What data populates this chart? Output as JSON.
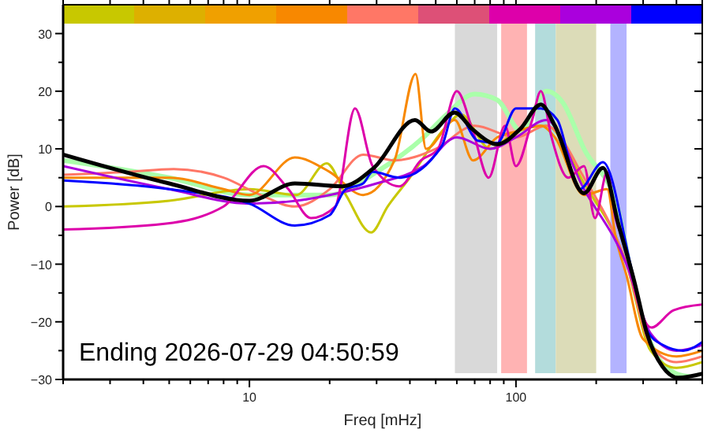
{
  "chart_data": {
    "type": "line",
    "xlabel": "Freq [mHz]",
    "ylabel": "Power [dB]",
    "log": "x",
    "xlim": [
      2,
      500
    ],
    "ylim": [
      -30,
      35
    ],
    "xticks": [
      {
        "value": 2,
        "label": null
      },
      {
        "value": 3,
        "label": null
      },
      {
        "value": 4,
        "label": null
      },
      {
        "value": 5,
        "label": null
      },
      {
        "value": 6,
        "label": null
      },
      {
        "value": 7,
        "label": null
      },
      {
        "value": 8,
        "label": null
      },
      {
        "value": 9,
        "label": null
      },
      10,
      {
        "value": 20,
        "label": null
      },
      {
        "value": 30,
        "label": null
      },
      {
        "value": 40,
        "label": null
      },
      {
        "value": 50,
        "label": null
      },
      {
        "value": 60,
        "label": null
      },
      {
        "value": 70,
        "label": null
      },
      {
        "value": 80,
        "label": null
      },
      {
        "value": 90,
        "label": null
      },
      100,
      {
        "value": 200,
        "label": null
      },
      {
        "value": 300,
        "label": null
      },
      {
        "value": 400,
        "label": null
      },
      {
        "value": 500,
        "label": null
      }
    ],
    "yticks": [
      -30,
      {
        "value": -25,
        "label": null
      },
      -20,
      {
        "value": -15,
        "label": null
      },
      -10,
      {
        "value": -5,
        "label": null
      },
      0,
      {
        "value": 5,
        "label": null
      },
      10,
      {
        "value": 15,
        "label": null
      },
      20,
      {
        "value": 25,
        "label": null
      },
      30
    ],
    "grid": false,
    "line_style": "solid",
    "marker": "none",
    "annotations": [
      "Ending 2026-07-29 04:50:59"
    ],
    "bands": [
      {
        "axis": "x",
        "from": 59,
        "to": 85,
        "color": "#d9d9d9"
      },
      {
        "axis": "x",
        "from": 88,
        "to": 110,
        "color": "#ffb3b3"
      },
      {
        "axis": "x",
        "from": 118,
        "to": 141,
        "color": "#b3dcdc"
      },
      {
        "axis": "x",
        "from": 141,
        "to": 200,
        "color": "#dcdcb8"
      },
      {
        "axis": "x",
        "from": 226,
        "to": 260,
        "color": "#b3b3ff"
      }
    ],
    "series": [
      {
        "color": "#aaffaa",
        "x": [
          2,
          5,
          10,
          20,
          30,
          45,
          55,
          70,
          85,
          105,
          130,
          150,
          180,
          240,
          280,
          330,
          400,
          450
        ],
        "values": [
          8,
          5,
          2,
          2,
          6,
          12,
          16,
          19.5,
          18.5,
          13,
          20,
          18,
          10,
          0,
          -15,
          -25,
          -29,
          -29.5
        ]
      },
      {
        "color": "#c8c800",
        "x": [
          2,
          5,
          10,
          15,
          19.5,
          23,
          28.6,
          33,
          40,
          55,
          62,
          80,
          100,
          130,
          180,
          260,
          320,
          400,
          500
        ],
        "values": [
          0,
          1,
          3,
          2,
          7.5,
          2,
          -4.5,
          0,
          5,
          14,
          16,
          10,
          13,
          14,
          4,
          -10,
          -25,
          -28,
          -27
        ]
      },
      {
        "color": "#ff7766",
        "x": [
          2,
          3.5,
          5.2,
          8,
          11,
          14.8,
          20,
          26.7,
          35,
          50,
          70,
          100,
          130,
          180,
          260,
          320,
          400,
          500
        ],
        "values": [
          5.5,
          6,
          6.5,
          5,
          2,
          0,
          3,
          9,
          8,
          10,
          14,
          12,
          14,
          5,
          -10,
          -24,
          -27,
          -26
        ]
      },
      {
        "color": "#f88800",
        "x": [
          2,
          5,
          8,
          10,
          14.8,
          20,
          26.7,
          35,
          42,
          46,
          59,
          69,
          85,
          100,
          124,
          140,
          180,
          220,
          236,
          260,
          300,
          400,
          500
        ],
        "values": [
          5,
          5,
          3,
          2,
          8.5,
          6,
          2,
          8,
          23,
          10,
          15,
          8,
          12,
          13,
          14,
          12,
          2,
          3,
          -5,
          -12,
          -23,
          -26,
          -25
        ]
      },
      {
        "color": "#aa00dd",
        "x": [
          2,
          5,
          10,
          15,
          20,
          30,
          45,
          60,
          80,
          100,
          130,
          180,
          260,
          320,
          400,
          500
        ],
        "values": [
          7,
          3,
          0.5,
          1,
          2,
          4,
          7,
          12,
          10,
          12,
          15,
          3,
          -10,
          -22,
          -25,
          -24
        ]
      },
      {
        "color": "#dd00aa",
        "x": [
          2,
          4.8,
          8,
          11.3,
          14,
          17,
          21,
          24.9,
          29,
          36.5,
          44,
          51,
          60,
          69,
          79,
          91,
          100,
          115,
          124,
          136,
          157,
          180,
          198,
          220,
          236,
          259,
          281,
          322,
          390,
          500
        ],
        "values": [
          -4,
          -3,
          0,
          7,
          3,
          -2,
          0,
          17,
          7,
          3.5,
          8,
          10,
          20,
          13,
          5,
          14,
          7,
          15,
          20,
          12,
          5,
          7,
          -2,
          6,
          -2,
          -7,
          -15,
          -21,
          -18,
          -17
        ]
      },
      {
        "color": "#0000ff",
        "x": [
          2,
          5,
          10,
          14.8,
          20,
          23,
          26.7,
          29,
          36.5,
          52.7,
          59,
          72,
          85,
          100,
          124,
          143,
          173,
          212,
          236,
          272,
          310,
          355,
          424,
          500
        ],
        "values": [
          4.5,
          3,
          0.5,
          -3.3,
          -1.5,
          3,
          4,
          6,
          5,
          10.5,
          17,
          11.4,
          11,
          17,
          17,
          15,
          3,
          7.7,
          null,
          -11,
          -21.5,
          -24,
          -25,
          -23.5
        ]
      },
      {
        "color": "#000000",
        "x": [
          2,
          5,
          10,
          14.8,
          22.3,
          29.3,
          41.8,
          48,
          58.8,
          69,
          85,
          104,
          124,
          140,
          180,
          212,
          242,
          278,
          310,
          355,
          406,
          500
        ],
        "values": [
          9,
          4,
          1,
          4,
          3.5,
          6.7,
          15,
          13,
          16.3,
          13.3,
          10.8,
          13.5,
          17.7,
          14,
          2.3,
          6.7,
          -3,
          -13,
          -22,
          -27.8,
          -29.7,
          -29
        ]
      }
    ]
  }
}
